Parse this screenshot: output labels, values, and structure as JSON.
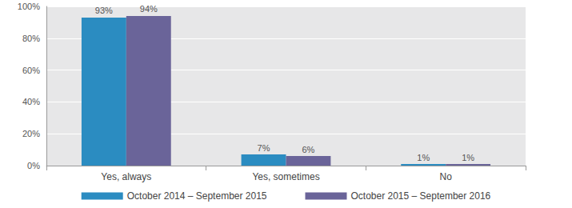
{
  "chart_data": {
    "type": "bar",
    "categories": [
      "Yes, always",
      "Yes, sometimes",
      "No"
    ],
    "series": [
      {
        "name": "October 2014 – September 2015",
        "color": "#2b8cc1",
        "values": [
          93,
          7,
          1
        ],
        "value_labels": [
          "93%",
          "7%",
          "1%"
        ]
      },
      {
        "name": "October 2015 – September 2016",
        "color": "#6a6499",
        "values": [
          94,
          6,
          1
        ],
        "value_labels": [
          "94%",
          "6%",
          "1%"
        ]
      }
    ],
    "ylim": [
      0,
      100
    ],
    "yticks": [
      {
        "value": 0,
        "label": "0%"
      },
      {
        "value": 20,
        "label": "20%"
      },
      {
        "value": 40,
        "label": "40%"
      },
      {
        "value": 60,
        "label": "60%"
      },
      {
        "value": 80,
        "label": "80%"
      },
      {
        "value": 100,
        "label": "100%"
      }
    ],
    "grid": true,
    "legend": "bottom",
    "data_labels": true
  }
}
